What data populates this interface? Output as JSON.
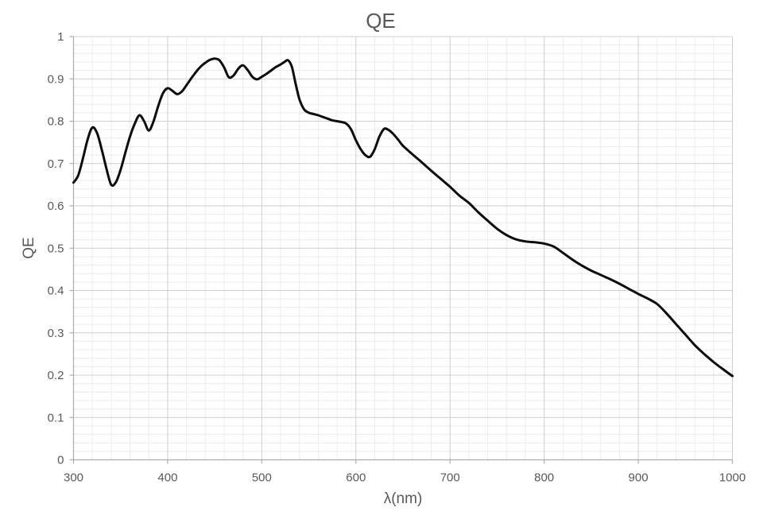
{
  "chart_data": {
    "type": "line",
    "title": "QE",
    "xlabel": "λ(nm)",
    "ylabel": "QE",
    "xlim": [
      300,
      1000
    ],
    "ylim": [
      0,
      1
    ],
    "x_major_ticks": [
      300,
      400,
      500,
      600,
      700,
      800,
      900,
      1000
    ],
    "x_tick_labels": [
      "300",
      "400",
      "500",
      "600",
      "700",
      "800",
      "900",
      "1000"
    ],
    "y_major_ticks": [
      0,
      0.1,
      0.2,
      0.3,
      0.4,
      0.5,
      0.6,
      0.7,
      0.8,
      0.9,
      1
    ],
    "y_tick_labels": [
      "0",
      "0.1",
      "0.2",
      "0.3",
      "0.4",
      "0.5",
      "0.6",
      "0.7",
      "0.8",
      "0.9",
      "1"
    ],
    "x_minor_step": 20,
    "y_minor_step": 0.02,
    "grid": "major+minor",
    "legend": "none",
    "series": [
      {
        "name": "QE",
        "x": [
          300,
          305,
          310,
          315,
          320,
          325,
          330,
          335,
          340,
          345,
          350,
          355,
          360,
          365,
          370,
          375,
          380,
          385,
          390,
          395,
          400,
          405,
          410,
          415,
          420,
          425,
          430,
          435,
          440,
          445,
          450,
          455,
          460,
          465,
          470,
          475,
          480,
          485,
          490,
          495,
          500,
          505,
          510,
          515,
          520,
          524,
          528,
          532,
          536,
          540,
          545,
          550,
          555,
          560,
          565,
          570,
          575,
          580,
          585,
          590,
          595,
          600,
          605,
          610,
          615,
          620,
          625,
          630,
          635,
          640,
          645,
          650,
          660,
          670,
          680,
          690,
          700,
          710,
          720,
          730,
          740,
          750,
          760,
          770,
          780,
          790,
          800,
          810,
          820,
          830,
          840,
          850,
          860,
          870,
          880,
          890,
          900,
          910,
          920,
          930,
          940,
          950,
          960,
          970,
          980,
          990,
          1000
        ],
        "y": [
          0.655,
          0.672,
          0.712,
          0.757,
          0.785,
          0.772,
          0.733,
          0.688,
          0.65,
          0.656,
          0.685,
          0.725,
          0.764,
          0.794,
          0.814,
          0.8,
          0.778,
          0.8,
          0.836,
          0.866,
          0.878,
          0.872,
          0.864,
          0.87,
          0.885,
          0.901,
          0.916,
          0.929,
          0.938,
          0.945,
          0.948,
          0.944,
          0.927,
          0.904,
          0.908,
          0.924,
          0.932,
          0.921,
          0.905,
          0.899,
          0.905,
          0.912,
          0.92,
          0.928,
          0.934,
          0.94,
          0.944,
          0.928,
          0.888,
          0.852,
          0.828,
          0.82,
          0.817,
          0.814,
          0.81,
          0.806,
          0.802,
          0.8,
          0.798,
          0.794,
          0.78,
          0.755,
          0.734,
          0.72,
          0.716,
          0.734,
          0.764,
          0.782,
          0.779,
          0.769,
          0.756,
          0.742,
          0.722,
          0.703,
          0.683,
          0.664,
          0.645,
          0.624,
          0.607,
          0.585,
          0.565,
          0.546,
          0.531,
          0.521,
          0.516,
          0.514,
          0.511,
          0.504,
          0.489,
          0.473,
          0.459,
          0.447,
          0.437,
          0.427,
          0.416,
          0.404,
          0.392,
          0.381,
          0.368,
          0.346,
          0.321,
          0.296,
          0.271,
          0.25,
          0.231,
          0.214,
          0.198
        ]
      }
    ],
    "colors": {
      "line": "#0d0d0d",
      "grid_major": "#cfcfcf",
      "grid_minor": "#ececec",
      "axis": "#acacac",
      "text": "#595959",
      "background": "#ffffff"
    }
  }
}
